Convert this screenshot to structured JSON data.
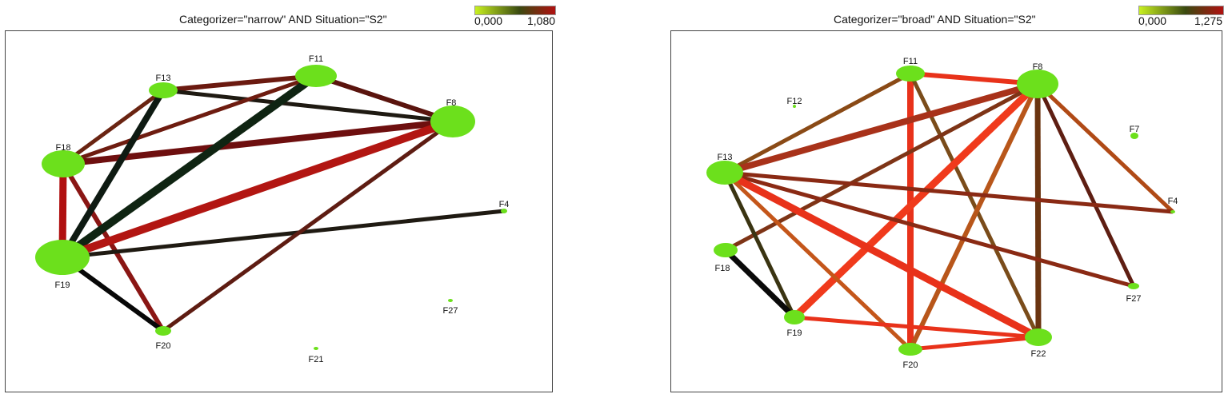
{
  "panels": [
    {
      "title": "Categorizer=\"narrow\" AND Situation=\"S2\"",
      "legend": {
        "min": "0,000",
        "max": "1,080"
      },
      "nodes": [
        {
          "id": "F11",
          "label": "F11"
        },
        {
          "id": "F13",
          "label": "F13"
        },
        {
          "id": "F8",
          "label": "F8"
        },
        {
          "id": "F18",
          "label": "F18"
        },
        {
          "id": "F4",
          "label": "F4"
        },
        {
          "id": "F19",
          "label": "F19"
        },
        {
          "id": "F27",
          "label": "F27"
        },
        {
          "id": "F20",
          "label": "F20"
        },
        {
          "id": "F21",
          "label": "F21"
        }
      ],
      "edges": [
        {
          "from": "F13",
          "to": "F11",
          "color": "#6b1a10"
        },
        {
          "from": "F13",
          "to": "F8",
          "color": "#1f1a12"
        },
        {
          "from": "F11",
          "to": "F8",
          "color": "#5a140e"
        },
        {
          "from": "F18",
          "to": "F11",
          "color": "#6e1c10"
        },
        {
          "from": "F18",
          "to": "F13",
          "color": "#6a2412"
        },
        {
          "from": "F18",
          "to": "F8",
          "color": "#6e0f0f"
        },
        {
          "from": "F18",
          "to": "F19",
          "color": "#b01010"
        },
        {
          "from": "F18",
          "to": "F20",
          "color": "#8a1614"
        },
        {
          "from": "F19",
          "to": "F13",
          "color": "#0e1a12"
        },
        {
          "from": "F19",
          "to": "F11",
          "color": "#0f2412"
        },
        {
          "from": "F19",
          "to": "F8",
          "color": "#b21612"
        },
        {
          "from": "F19",
          "to": "F4",
          "color": "#1f1a12"
        },
        {
          "from": "F19",
          "to": "F20",
          "color": "#080808"
        },
        {
          "from": "F20",
          "to": "F8",
          "color": "#5e1c12"
        }
      ]
    },
    {
      "title": "Categorizer=\"broad\" AND Situation=\"S2\"",
      "legend": {
        "min": "0,000",
        "max": "1,275"
      },
      "nodes": [
        {
          "id": "F11",
          "label": "F11"
        },
        {
          "id": "F8",
          "label": "F8"
        },
        {
          "id": "F12",
          "label": "F12"
        },
        {
          "id": "F7",
          "label": "F7"
        },
        {
          "id": "F13",
          "label": "F13"
        },
        {
          "id": "F4",
          "label": "F4"
        },
        {
          "id": "F18",
          "label": "F18"
        },
        {
          "id": "F27",
          "label": "F27"
        },
        {
          "id": "F19",
          "label": "F19"
        },
        {
          "id": "F22",
          "label": "F22"
        },
        {
          "id": "F20",
          "label": "F20"
        }
      ],
      "edges": [
        {
          "from": "F11",
          "to": "F8",
          "color": "#e8321a"
        },
        {
          "from": "F11",
          "to": "F13",
          "color": "#8a4a16"
        },
        {
          "from": "F11",
          "to": "F20",
          "color": "#e8321a"
        },
        {
          "from": "F11",
          "to": "F22",
          "color": "#7a4c1a"
        },
        {
          "from": "F8",
          "to": "F13",
          "color": "#a8321a"
        },
        {
          "from": "F8",
          "to": "F18",
          "color": "#7e3416"
        },
        {
          "from": "F8",
          "to": "F19",
          "color": "#f03a1c"
        },
        {
          "from": "F8",
          "to": "F20",
          "color": "#b8561a"
        },
        {
          "from": "F8",
          "to": "F22",
          "color": "#6a3410"
        },
        {
          "from": "F8",
          "to": "F27",
          "color": "#5e1e12"
        },
        {
          "from": "F8",
          "to": "F4",
          "color": "#b04a16"
        },
        {
          "from": "F13",
          "to": "F4",
          "color": "#8a2a14"
        },
        {
          "from": "F13",
          "to": "F27",
          "color": "#8a2a14"
        },
        {
          "from": "F13",
          "to": "F22",
          "color": "#e8321a"
        },
        {
          "from": "F13",
          "to": "F20",
          "color": "#c4561a"
        },
        {
          "from": "F13",
          "to": "F19",
          "color": "#3a3412"
        },
        {
          "from": "F18",
          "to": "F19",
          "color": "#0a0a0a"
        },
        {
          "from": "F19",
          "to": "F22",
          "color": "#e8321a"
        },
        {
          "from": "F20",
          "to": "F22",
          "color": "#e8321a"
        }
      ]
    }
  ],
  "colors": {
    "node_fill": "#6ce01c",
    "legend_low": "#c8f020",
    "legend_mid": "#3a4a10",
    "legend_high": "#b01010"
  }
}
